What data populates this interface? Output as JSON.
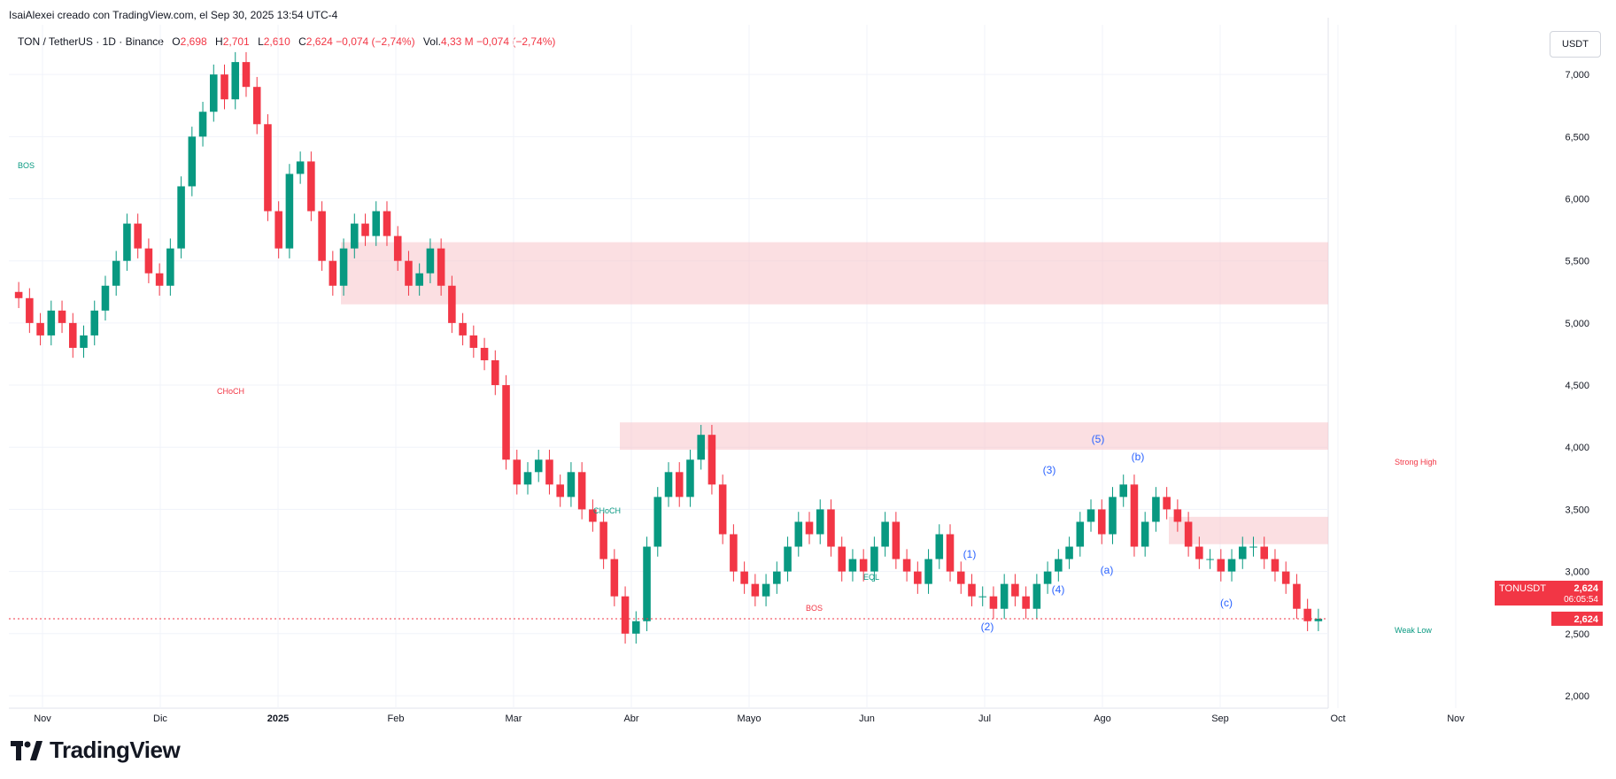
{
  "header": {
    "credit": "IsaiAlexei creado con TradingView.com, el Sep 30, 2025 13:54 UTC-4"
  },
  "legend": {
    "symbol": "TON / TetherUS · 1D · Binance",
    "o_label": "O",
    "o_value": "2,698",
    "h_label": "H",
    "h_value": "2,701",
    "l_label": "L",
    "l_value": "2,610",
    "c_label": "C",
    "c_value": "2,624",
    "change": "−0,074 (−2,74%)",
    "vol_label": "Vol.",
    "vol_value": "4,33 M",
    "vol_change": "−0,074 (−2,74%)"
  },
  "currency_button": "USDT",
  "brand": {
    "name": "TradingView"
  },
  "colors": {
    "up": "#089981",
    "down": "#f23645",
    "zone": "#f7c5ca",
    "wave_blue": "#2962ff"
  },
  "chart_data": {
    "type": "candlestick",
    "ylim": [
      1.9,
      7.4
    ],
    "grid": true,
    "y_ticks": [
      "7,000",
      "6,500",
      "6,000",
      "5,500",
      "5,000",
      "4,500",
      "4,000",
      "3,500",
      "3,000",
      "2,500",
      "2,000"
    ],
    "x_ticks": [
      "Nov",
      "Dic",
      "2025",
      "Feb",
      "Mar",
      "Abr",
      "Mayo",
      "Jun",
      "Jul",
      "Ago",
      "Sep",
      "Oct",
      "Nov"
    ],
    "closes": [
      5.2,
      5.0,
      4.9,
      5.1,
      5.0,
      4.8,
      4.9,
      5.1,
      5.3,
      5.5,
      5.8,
      5.6,
      5.4,
      5.3,
      5.6,
      6.1,
      6.5,
      6.7,
      7.0,
      6.8,
      7.1,
      6.9,
      6.6,
      5.9,
      5.6,
      6.2,
      6.3,
      5.9,
      5.5,
      5.3,
      5.6,
      5.8,
      5.7,
      5.9,
      5.7,
      5.5,
      5.3,
      5.4,
      5.6,
      5.3,
      5.0,
      4.9,
      4.8,
      4.7,
      4.5,
      3.9,
      3.7,
      3.8,
      3.9,
      3.7,
      3.6,
      3.8,
      3.5,
      3.4,
      3.1,
      2.8,
      2.5,
      2.6,
      3.2,
      3.6,
      3.8,
      3.6,
      3.9,
      4.1,
      3.7,
      3.3,
      3.0,
      2.9,
      2.8,
      2.9,
      3.0,
      3.2,
      3.4,
      3.3,
      3.5,
      3.2,
      3.0,
      3.1,
      3.0,
      3.2,
      3.4,
      3.1,
      3.0,
      2.9,
      3.1,
      3.3,
      3.0,
      2.9,
      2.8,
      2.8,
      2.7,
      2.9,
      2.8,
      2.7,
      2.9,
      3.0,
      3.1,
      3.2,
      3.4,
      3.5,
      3.3,
      3.6,
      3.7,
      3.2,
      3.4,
      3.6,
      3.5,
      3.4,
      3.2,
      3.1,
      3.1,
      3.0,
      3.1,
      3.2,
      3.2,
      3.1,
      3.0,
      2.9,
      2.7,
      2.6,
      2.62
    ],
    "annotations": [
      {
        "text": "BOS",
        "color": "#089981"
      },
      {
        "text": "CHoCH",
        "color": "#f23645"
      },
      {
        "text": "BOS",
        "color": "#f23645"
      },
      {
        "text": "CHoCH",
        "color": "#089981"
      },
      {
        "text": "EQL",
        "color": "#089981"
      },
      {
        "text": "Strong High",
        "color": "#f23645"
      },
      {
        "text": "Weak Low",
        "color": "#089981"
      }
    ],
    "waves": [
      "(1)",
      "(2)",
      "(3)",
      "(4)",
      "(5)",
      "(a)",
      "(b)",
      "(c)"
    ],
    "last_price_label": {
      "symbol": "TONUSDT",
      "price": "2,624",
      "countdown": "06:05:54"
    },
    "current_price_label": "2,624"
  }
}
